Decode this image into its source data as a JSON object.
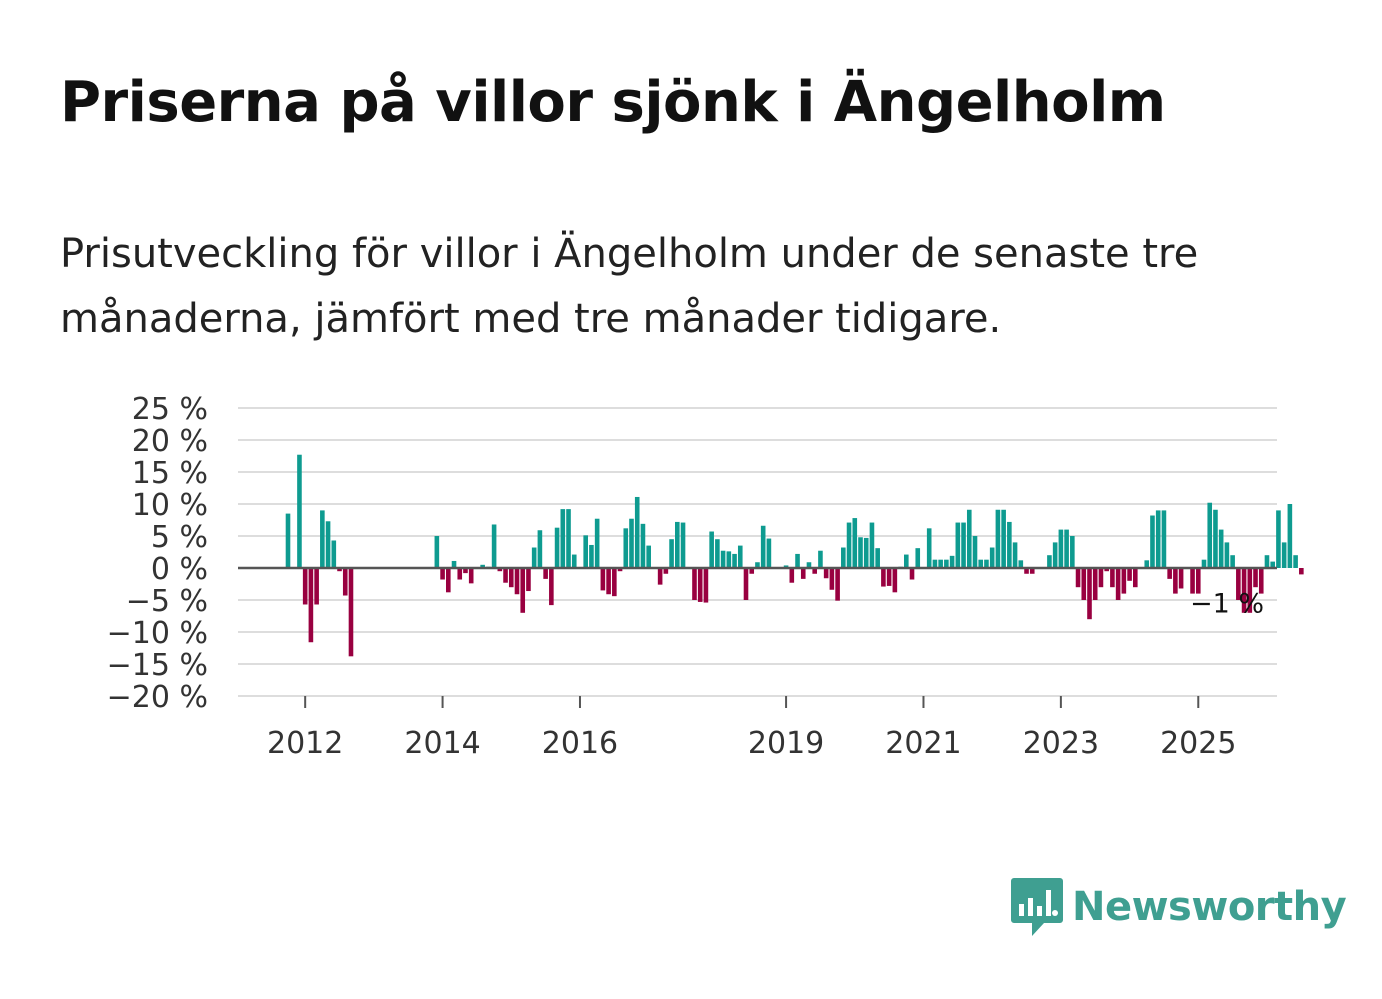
{
  "title": "Priserna på villor sjönk i Ängelholm",
  "subtitle": "Prisutveckling för villor i Ängelholm under de senaste tre månaderna, jämfört med tre månader tidigare.",
  "brand": {
    "name": "Newsworthy"
  },
  "colors": {
    "positive": "#0e9b90",
    "negative": "#990040",
    "grid": "#dddddd",
    "zero": "#555555",
    "brand": "#3f9f91"
  },
  "chart_data": {
    "type": "bar",
    "ylim": [
      -20,
      25
    ],
    "yticks": [
      25,
      20,
      15,
      10,
      5,
      0,
      -5,
      -10,
      -15,
      -20
    ],
    "ytick_labels": [
      "25 %",
      "20 %",
      "15 %",
      "10 %",
      "5 %",
      "0 %",
      "−5 %",
      "−10 %",
      "−15 %",
      "−20 %"
    ],
    "xtick_labels": [
      "2012",
      "2014",
      "2016",
      "2019",
      "2021",
      "2023",
      "2025"
    ],
    "xtick_years": [
      2012,
      2014,
      2016,
      2019,
      2021,
      2023,
      2025
    ],
    "x_start": 2011.75,
    "bars_per_year": 12,
    "end_label": "−1 %",
    "values": [
      8.5,
      0,
      17.7,
      -5.7,
      -11.6,
      -5.7,
      9,
      7.3,
      4.3,
      -0.5,
      -4.3,
      -13.8,
      0,
      0,
      0,
      0,
      0,
      0,
      0,
      0,
      0,
      0,
      0,
      0,
      0,
      0,
      5,
      -1.8,
      -3.8,
      1.1,
      -1.8,
      -0.8,
      -2.4,
      0,
      0.5,
      0.2,
      6.8,
      -0.5,
      -2.3,
      -3,
      -4.1,
      -7,
      -3.6,
      3.2,
      5.9,
      -1.7,
      -5.8,
      6.3,
      9.2,
      9.2,
      2.1,
      0,
      5.1,
      3.6,
      7.7,
      -3.5,
      -4.1,
      -4.4,
      -0.5,
      6.2,
      7.7,
      11.1,
      6.9,
      3.5,
      0,
      -2.6,
      -0.9,
      4.5,
      7.2,
      7.1,
      0,
      -5,
      -5.3,
      -5.4,
      5.7,
      4.5,
      2.7,
      2.6,
      2.2,
      3.5,
      -5,
      -0.9,
      0.9,
      6.6,
      4.6,
      0,
      0,
      0.4,
      -2.3,
      2.2,
      -1.7,
      0.9,
      -0.9,
      2.7,
      -1.6,
      -3.4,
      -5.1,
      3.2,
      7.1,
      7.8,
      4.8,
      4.7,
      7.1,
      3.1,
      -2.9,
      -2.8,
      -3.8,
      0.2,
      2.1,
      -1.8,
      3.1,
      0,
      6.2,
      1.3,
      1.3,
      1.3,
      1.9,
      7.1,
      7.1,
      9.1,
      5,
      1.3,
      1.3,
      3.2,
      9.1,
      9.1,
      7.2,
      4,
      1.2,
      -0.9,
      -0.9,
      0,
      0,
      2,
      4,
      6,
      6,
      5,
      -3,
      -5,
      -8,
      -5,
      -3,
      -0.5,
      -3,
      -5,
      -4,
      -2,
      -3,
      0,
      1.2,
      8.2,
      9,
      9,
      -1.7,
      -4,
      -3.2,
      0,
      -4,
      -4,
      1.3,
      10.2,
      9.1,
      6,
      4,
      2,
      -5,
      -7,
      -7,
      -3,
      -4,
      2,
      1,
      9,
      4,
      10,
      2,
      -1
    ]
  }
}
